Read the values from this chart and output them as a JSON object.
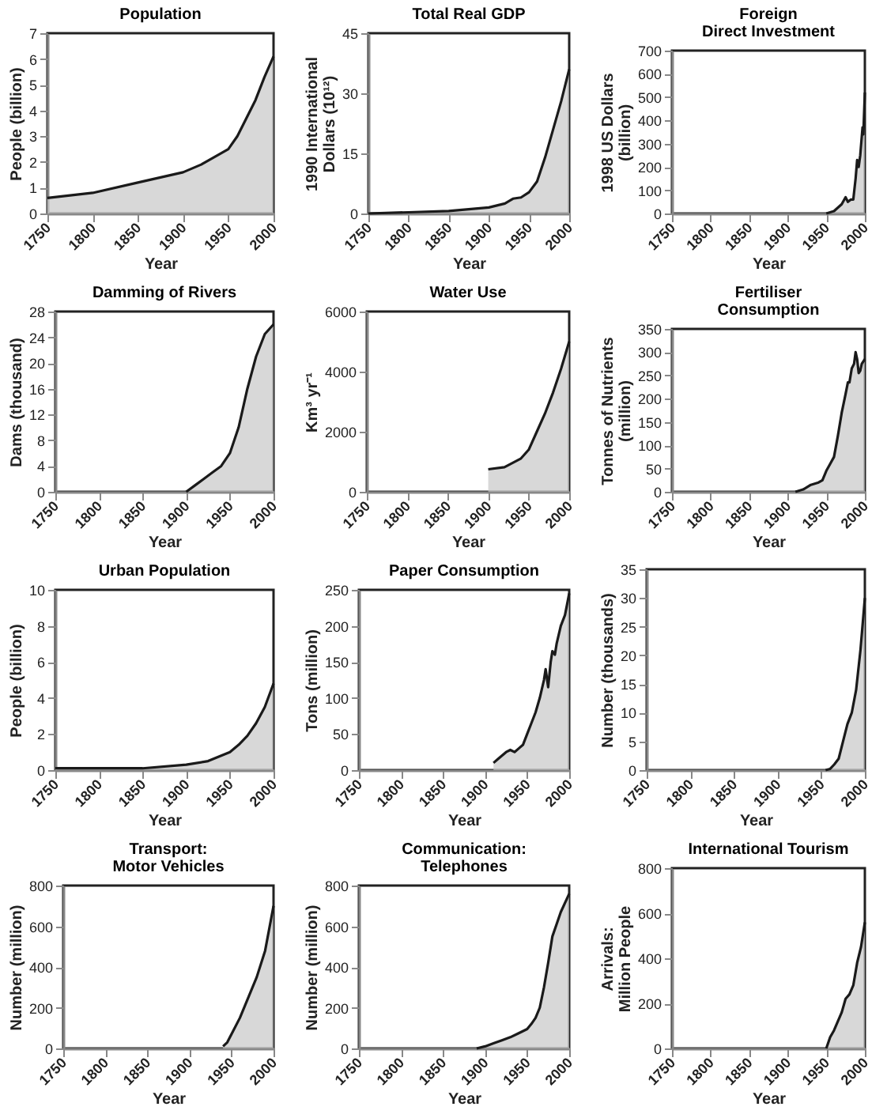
{
  "chart_data": [
    {
      "type": "area",
      "title": "Population",
      "xlabel": "Year",
      "ylabel": "People (billion)",
      "xlim": [
        1750,
        2000
      ],
      "xticks": [
        1750,
        1800,
        1850,
        1900,
        1950,
        2000
      ],
      "ylim": [
        0,
        7
      ],
      "yticks": [
        0,
        1,
        2,
        3,
        4,
        5,
        6,
        7
      ],
      "color": "#c8c8c8",
      "grid": false,
      "x": [
        1750,
        1800,
        1850,
        1900,
        1920,
        1930,
        1950,
        1960,
        1970,
        1980,
        1990,
        2000
      ],
      "values": [
        0.6,
        0.8,
        1.2,
        1.6,
        1.9,
        2.1,
        2.5,
        3.0,
        3.7,
        4.4,
        5.3,
        6.1
      ]
    },
    {
      "type": "area",
      "title": "Total Real GDP",
      "xlabel": "Year",
      "ylabel": "1990 International\nDollars (10¹²)",
      "xlim": [
        1750,
        2000
      ],
      "xticks": [
        1750,
        1800,
        1850,
        1900,
        1950,
        2000
      ],
      "ylim": [
        0,
        45
      ],
      "yticks": [
        0,
        15,
        30,
        45
      ],
      "color": "#c8c8c8",
      "grid": false,
      "x": [
        1750,
        1800,
        1850,
        1900,
        1920,
        1930,
        1940,
        1950,
        1960,
        1970,
        1980,
        1990,
        2000
      ],
      "values": [
        0,
        0.3,
        0.6,
        1.5,
        2.5,
        3.7,
        4,
        5.3,
        8,
        14,
        21,
        28,
        36
      ]
    },
    {
      "type": "area",
      "title": "Foreign\nDirect Investment",
      "xlabel": "Year",
      "ylabel": "1998 US Dollars\n(billion)",
      "xlim": [
        1750,
        2000
      ],
      "xticks": [
        1750,
        1800,
        1850,
        1900,
        1950,
        2000
      ],
      "ylim": [
        0,
        700
      ],
      "yticks": [
        0,
        100,
        200,
        300,
        400,
        500,
        600,
        700
      ],
      "color": "#c8c8c8",
      "grid": false,
      "x": [
        1950,
        1960,
        1970,
        1975,
        1978,
        1982,
        1985,
        1988,
        1990,
        1992,
        1994,
        1996,
        1997,
        1998,
        2000
      ],
      "values": [
        0,
        10,
        40,
        70,
        50,
        60,
        60,
        150,
        230,
        200,
        250,
        330,
        370,
        340,
        520
      ]
    },
    {
      "type": "area",
      "title": "Damming of Rivers",
      "xlabel": "Year",
      "ylabel": "Dams (thousand)",
      "xlim": [
        1750,
        2000
      ],
      "xticks": [
        1750,
        1800,
        1850,
        1900,
        1950,
        2000
      ],
      "ylim": [
        0,
        28
      ],
      "yticks": [
        0,
        4,
        8,
        12,
        16,
        20,
        24,
        28
      ],
      "color": "#c8c8c8",
      "grid": false,
      "x": [
        1900,
        1910,
        1920,
        1930,
        1940,
        1950,
        1960,
        1970,
        1980,
        1990,
        2000
      ],
      "values": [
        0,
        1,
        2,
        3,
        4,
        6,
        10,
        16,
        21,
        24.5,
        26
      ]
    },
    {
      "type": "area",
      "title": "Water Use",
      "xlabel": "Year",
      "ylabel": "Km³ yr⁻¹",
      "xlim": [
        1750,
        2000
      ],
      "xticks": [
        1750,
        1800,
        1850,
        1900,
        1950,
        2000
      ],
      "ylim": [
        0,
        6000
      ],
      "yticks": [
        0,
        2000,
        4000,
        6000
      ],
      "color": "#c8c8c8",
      "grid": false,
      "x": [
        1900,
        1920,
        1940,
        1950,
        1960,
        1970,
        1980,
        1990,
        2000
      ],
      "values": [
        750,
        820,
        1100,
        1400,
        2000,
        2600,
        3300,
        4100,
        5000
      ]
    },
    {
      "type": "area",
      "title": "Fertiliser\nConsumption",
      "xlabel": "Year",
      "ylabel": "Tonnes of Nutrients\n(million)",
      "xlim": [
        1750,
        2000
      ],
      "xticks": [
        1750,
        1800,
        1850,
        1900,
        1950,
        2000
      ],
      "ylim": [
        0,
        350
      ],
      "yticks": [
        0,
        50,
        100,
        150,
        200,
        250,
        300,
        350
      ],
      "color": "#c8c8c8",
      "grid": false,
      "x": [
        1910,
        1920,
        1930,
        1940,
        1945,
        1950,
        1955,
        1960,
        1965,
        1970,
        1975,
        1978,
        1980,
        1983,
        1986,
        1988,
        1990,
        1992,
        1994,
        1996,
        2000
      ],
      "values": [
        0,
        5,
        15,
        20,
        25,
        45,
        60,
        75,
        120,
        170,
        210,
        235,
        235,
        265,
        275,
        300,
        285,
        255,
        260,
        275,
        285
      ]
    },
    {
      "type": "area",
      "title": "Urban Population",
      "xlabel": "Year",
      "ylabel": "People (billion)",
      "xlim": [
        1750,
        2000
      ],
      "xticks": [
        1750,
        1800,
        1850,
        1900,
        1950,
        2000
      ],
      "ylim": [
        0,
        10
      ],
      "yticks": [
        0,
        2,
        4,
        6,
        8,
        10
      ],
      "color": "#c8c8c8",
      "grid": false,
      "x": [
        1750,
        1800,
        1850,
        1900,
        1925,
        1950,
        1960,
        1970,
        1980,
        1990,
        2000
      ],
      "values": [
        0.1,
        0.1,
        0.1,
        0.3,
        0.5,
        1.0,
        1.4,
        1.9,
        2.6,
        3.5,
        4.8
      ]
    },
    {
      "type": "area",
      "title": "Paper Consumption",
      "xlabel": "Year",
      "ylabel": "Tons (million)",
      "xlim": [
        1750,
        2000
      ],
      "xticks": [
        1750,
        1800,
        1850,
        1900,
        1950,
        2000
      ],
      "ylim": [
        0,
        250
      ],
      "yticks": [
        0,
        50,
        100,
        150,
        200,
        250
      ],
      "color": "#c8c8c8",
      "grid": false,
      "x": [
        1910,
        1915,
        1920,
        1925,
        1930,
        1935,
        1940,
        1945,
        1950,
        1955,
        1960,
        1965,
        1970,
        1972,
        1975,
        1978,
        1980,
        1983,
        1985,
        1990,
        1995,
        2000
      ],
      "values": [
        10,
        15,
        20,
        25,
        28,
        25,
        30,
        35,
        50,
        65,
        80,
        100,
        125,
        140,
        115,
        150,
        165,
        160,
        175,
        200,
        215,
        245
      ]
    },
    {
      "type": "area",
      "xlabel": "Year",
      "ylabel": "Number (thousands)",
      "xlim": [
        1750,
        2000
      ],
      "xticks": [
        1750,
        1800,
        1850,
        1900,
        1950,
        2000
      ],
      "ylim": [
        0,
        35
      ],
      "yticks": [
        0,
        5,
        10,
        15,
        20,
        25,
        30,
        35
      ],
      "color": "#c8c8c8",
      "grid": false,
      "x": [
        1955,
        1960,
        1965,
        1970,
        1975,
        1980,
        1985,
        1990,
        1995,
        2000
      ],
      "values": [
        0,
        0.2,
        1,
        2,
        5,
        8,
        10,
        14,
        21,
        30
      ]
    },
    {
      "type": "area",
      "title": "Transport:\nMotor Vehicles",
      "xlabel": "Year",
      "ylabel": "Number (million)",
      "xlim": [
        1750,
        2000
      ],
      "xticks": [
        1750,
        1800,
        1850,
        1900,
        1950,
        2000
      ],
      "ylim": [
        0,
        800
      ],
      "yticks": [
        0,
        200,
        400,
        600,
        800
      ],
      "color": "#c8c8c8",
      "grid": false,
      "x": [
        1940,
        1945,
        1950,
        1960,
        1970,
        1980,
        1990,
        2000
      ],
      "values": [
        10,
        30,
        70,
        150,
        250,
        350,
        480,
        700
      ]
    },
    {
      "type": "area",
      "title": "Communication:\nTelephones",
      "xlabel": "Year",
      "ylabel": "Number (million)",
      "xlim": [
        1750,
        2000
      ],
      "xticks": [
        1750,
        1800,
        1850,
        1900,
        1950,
        2000
      ],
      "ylim": [
        0,
        800
      ],
      "yticks": [
        0,
        200,
        400,
        600,
        800
      ],
      "color": "#c8c8c8",
      "grid": false,
      "x": [
        1890,
        1900,
        1910,
        1920,
        1930,
        1940,
        1950,
        1955,
        1960,
        1965,
        1970,
        1975,
        1980,
        1985,
        1990,
        2000
      ],
      "values": [
        0,
        10,
        25,
        40,
        55,
        75,
        95,
        120,
        150,
        200,
        300,
        420,
        550,
        610,
        670,
        760
      ]
    },
    {
      "type": "area",
      "title": "International Tourism",
      "xlabel": "Year",
      "ylabel": "Arrivals:\nMillion People",
      "xlim": [
        1750,
        2000
      ],
      "xticks": [
        1750,
        1800,
        1850,
        1900,
        1950,
        2000
      ],
      "ylim": [
        0,
        800
      ],
      "yticks": [
        0,
        200,
        400,
        600,
        800
      ],
      "color": "#c8c8c8",
      "grid": false,
      "x": [
        1950,
        1955,
        1960,
        1970,
        1975,
        1980,
        1985,
        1990,
        1995,
        2000
      ],
      "values": [
        0,
        50,
        80,
        160,
        220,
        240,
        280,
        380,
        450,
        560
      ]
    }
  ]
}
